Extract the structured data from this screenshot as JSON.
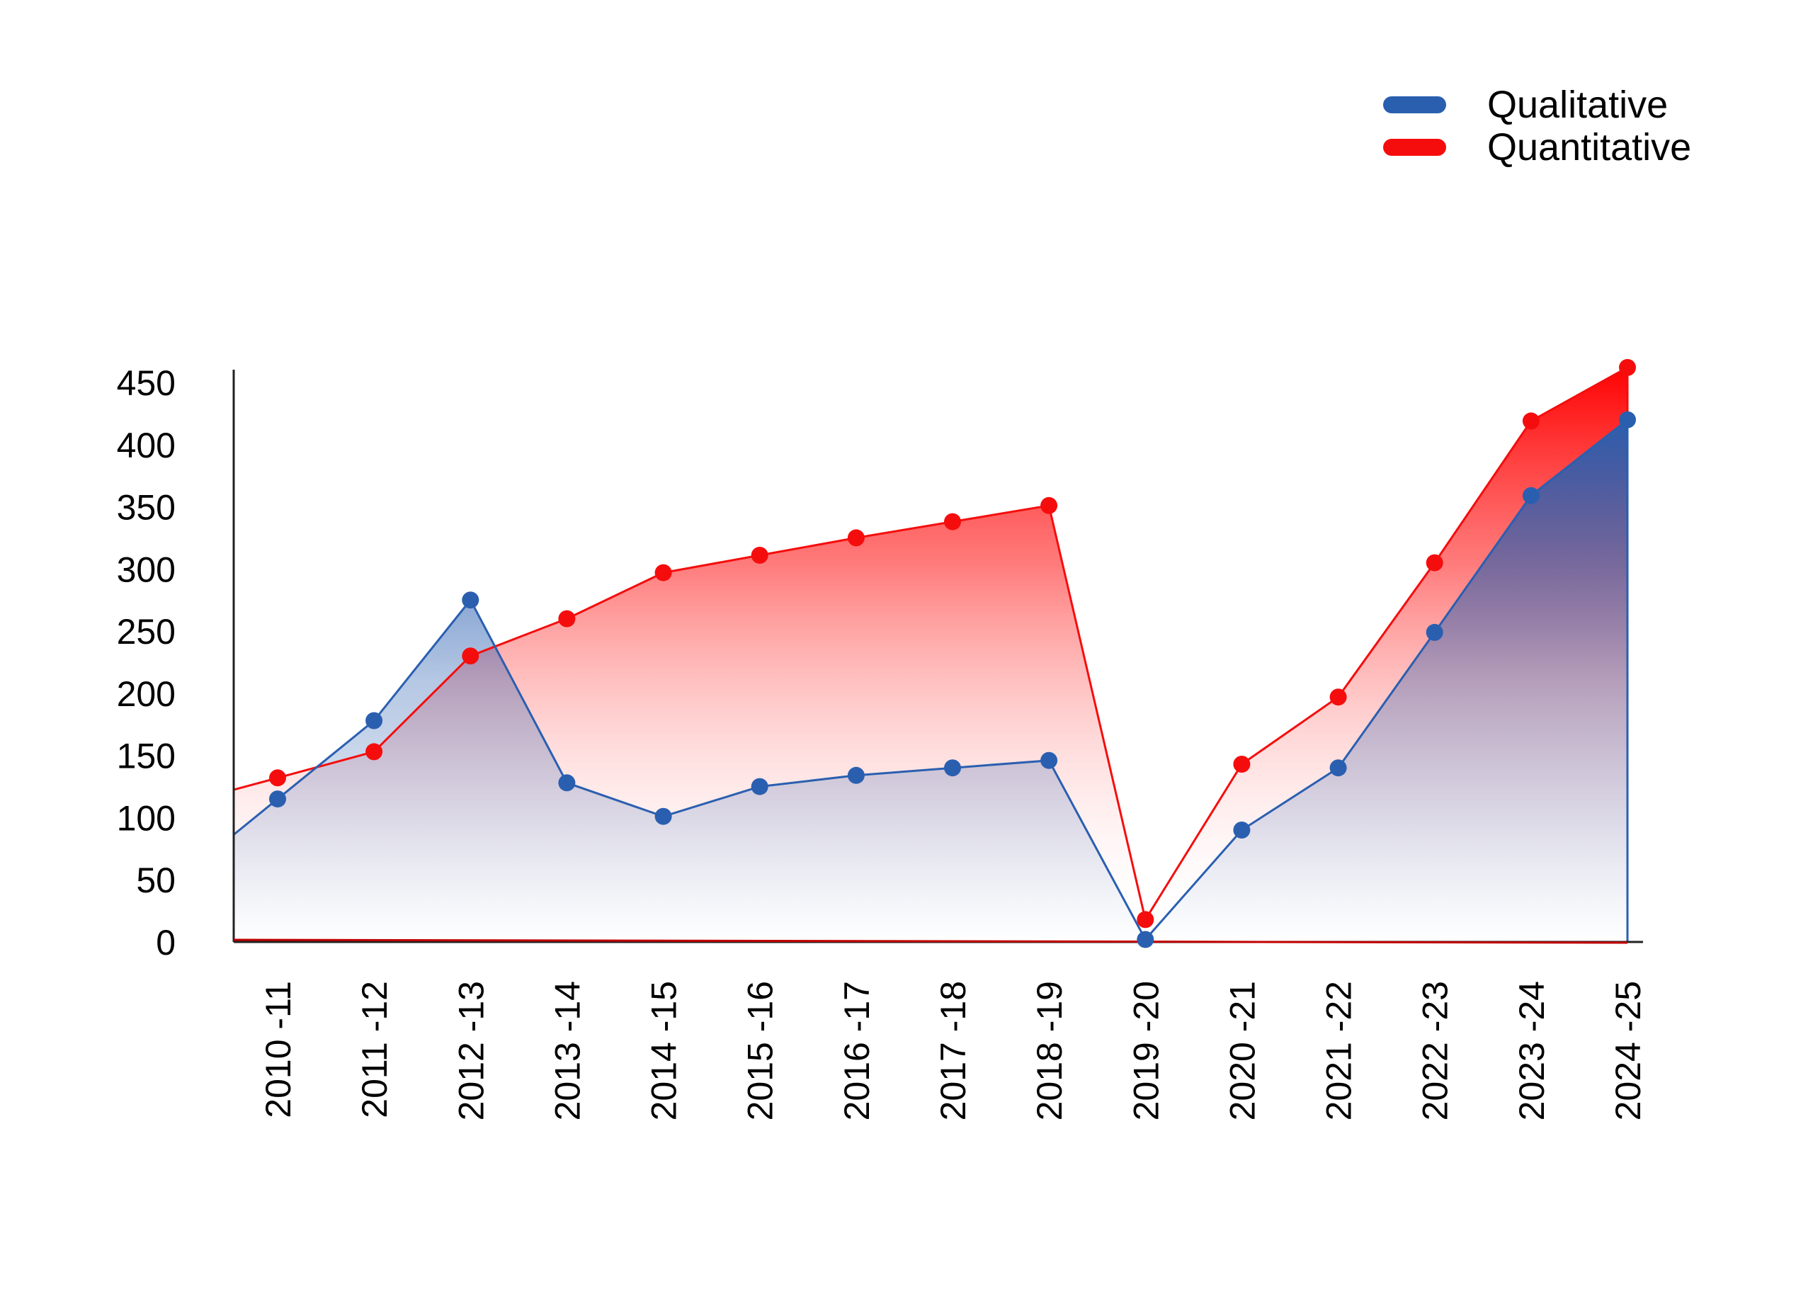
{
  "chart_data": {
    "type": "area",
    "title": "",
    "xlabel": "",
    "ylabel": "",
    "ylim": [
      0,
      450
    ],
    "yticks": [
      0,
      50,
      100,
      150,
      200,
      250,
      300,
      350,
      400,
      450
    ],
    "grid": false,
    "legend_position": "top-right",
    "categories": [
      "2010 -11",
      "2011 -12",
      "2012 -13",
      "2013 -14",
      "2014 -15",
      "2015 -16",
      "2016 -17",
      "2017 -18",
      "2018 -19",
      "2019 -20",
      "2020 -21",
      "2021 -22",
      "2022 -23",
      "2023 -24",
      "2024 -25"
    ],
    "series": [
      {
        "name": "Qualitative",
        "color": "#2a5fb0",
        "values": [
          115,
          178,
          275,
          128,
          101,
          125,
          134,
          140,
          146,
          2,
          90,
          140,
          249,
          359,
          420
        ]
      },
      {
        "name": "Quantitative",
        "color": "#f50d0d",
        "values": [
          132,
          153,
          230,
          260,
          297,
          311,
          325,
          338,
          351,
          18,
          143,
          197,
          305,
          419,
          462
        ]
      }
    ]
  }
}
